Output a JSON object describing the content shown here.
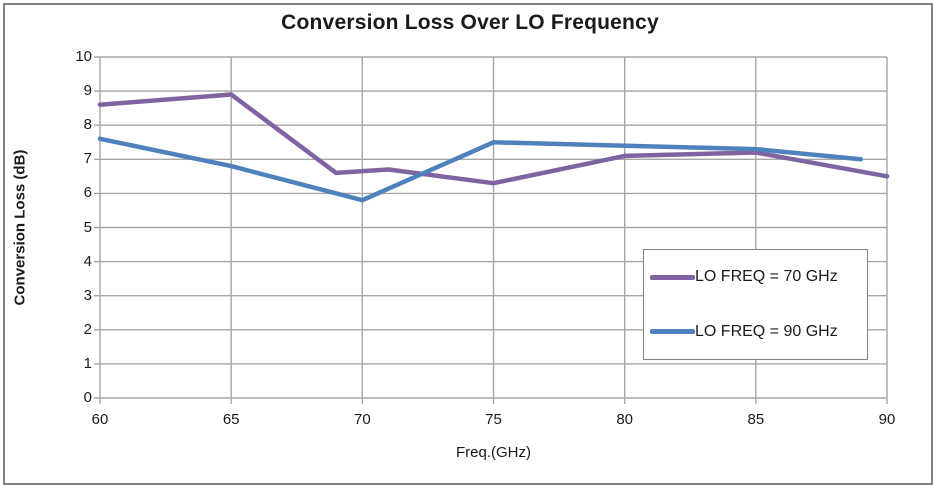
{
  "frame": {
    "border_color": "#808080"
  },
  "colors": {
    "grid": "#A6A6A6",
    "text": "#1a1a1a",
    "legend_border": "#808080"
  },
  "chart_data": {
    "type": "line",
    "title": "Conversion Loss Over LO Frequency",
    "xlabel": "Freq.(GHz)",
    "ylabel": "Conversion Loss (dB)",
    "xlim": [
      60,
      90
    ],
    "ylim": [
      0,
      10
    ],
    "xticks": [
      60,
      65,
      70,
      75,
      80,
      85,
      90
    ],
    "yticks": [
      0,
      1,
      2,
      3,
      4,
      5,
      6,
      7,
      8,
      9,
      10
    ],
    "grid": true,
    "legend_position": "inside-right",
    "series": [
      {
        "name": "LO FREQ = 70 GHz",
        "color": "#8064A2",
        "x": [
          60,
          65,
          69,
          71,
          75,
          80,
          85,
          90
        ],
        "y": [
          8.6,
          8.9,
          6.6,
          6.7,
          6.3,
          7.1,
          7.2,
          6.5
        ]
      },
      {
        "name": "LO FREQ = 90 GHz",
        "color": "#4F81BD",
        "x": [
          60,
          65,
          70,
          75,
          80,
          85,
          89
        ],
        "y": [
          7.6,
          6.8,
          5.8,
          7.5,
          7.4,
          7.3,
          7.0
        ]
      }
    ]
  }
}
